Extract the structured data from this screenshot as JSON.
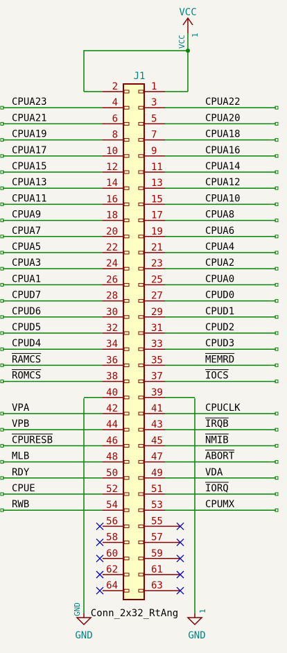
{
  "power": {
    "vcc_label": "VCC",
    "vcc_pin_name": "VCC",
    "vcc_pin_num": "1",
    "gnd_left_label": "GND",
    "gnd_right_label": "GND",
    "gnd_left_pin_name": "GND",
    "gnd_right_pin_num": "1"
  },
  "component": {
    "reference": "J1",
    "value": "Conn_2x32_RtAng"
  },
  "colors": {
    "background": "#f5f4ef",
    "body_fill": "#ffffc4",
    "body_stroke": "#840000",
    "wire": "#008400",
    "net_label": "#000000",
    "pin_number": "#a90000",
    "power": "#840000",
    "power_text": "#008484",
    "no_connect": "#0000c8"
  },
  "pins": {
    "left": [
      {
        "num": "2",
        "label": ""
      },
      {
        "num": "4",
        "label": "CPUA23"
      },
      {
        "num": "6",
        "label": "CPUA21"
      },
      {
        "num": "8",
        "label": "CPUA19"
      },
      {
        "num": "10",
        "label": "CPUA17"
      },
      {
        "num": "12",
        "label": "CPUA15"
      },
      {
        "num": "14",
        "label": "CPUA13"
      },
      {
        "num": "16",
        "label": "CPUA11"
      },
      {
        "num": "18",
        "label": "CPUA9"
      },
      {
        "num": "20",
        "label": "CPUA7"
      },
      {
        "num": "22",
        "label": "CPUA5"
      },
      {
        "num": "24",
        "label": "CPUA3"
      },
      {
        "num": "26",
        "label": "CPUA1"
      },
      {
        "num": "28",
        "label": "CPUD7"
      },
      {
        "num": "30",
        "label": "CPUD6"
      },
      {
        "num": "32",
        "label": "CPUD5"
      },
      {
        "num": "34",
        "label": "CPUD4"
      },
      {
        "num": "36",
        "label": "RAMCS",
        "overbar": true
      },
      {
        "num": "38",
        "label": "ROMCS",
        "overbar": true
      },
      {
        "num": "40",
        "label": ""
      },
      {
        "num": "42",
        "label": "VPA"
      },
      {
        "num": "44",
        "label": "VPB"
      },
      {
        "num": "46",
        "label": "CPURESB",
        "overbar": true
      },
      {
        "num": "48",
        "label": "MLB"
      },
      {
        "num": "50",
        "label": "RDY"
      },
      {
        "num": "52",
        "label": "CPUE"
      },
      {
        "num": "54",
        "label": "RWB"
      },
      {
        "num": "56",
        "label": "",
        "nc": true
      },
      {
        "num": "58",
        "label": "",
        "nc": true
      },
      {
        "num": "60",
        "label": "",
        "nc": true
      },
      {
        "num": "62",
        "label": "",
        "nc": true
      },
      {
        "num": "64",
        "label": "",
        "nc": true
      }
    ],
    "right": [
      {
        "num": "1",
        "label": ""
      },
      {
        "num": "3",
        "label": "CPUA22"
      },
      {
        "num": "5",
        "label": "CPUA20"
      },
      {
        "num": "7",
        "label": "CPUA18"
      },
      {
        "num": "9",
        "label": "CPUA16"
      },
      {
        "num": "11",
        "label": "CPUA14"
      },
      {
        "num": "13",
        "label": "CPUA12"
      },
      {
        "num": "15",
        "label": "CPUA10"
      },
      {
        "num": "17",
        "label": "CPUA8"
      },
      {
        "num": "19",
        "label": "CPUA6"
      },
      {
        "num": "21",
        "label": "CPUA4"
      },
      {
        "num": "23",
        "label": "CPUA2"
      },
      {
        "num": "25",
        "label": "CPUA0"
      },
      {
        "num": "27",
        "label": "CPUD0"
      },
      {
        "num": "29",
        "label": "CPUD1"
      },
      {
        "num": "31",
        "label": "CPUD2"
      },
      {
        "num": "33",
        "label": "CPUD3"
      },
      {
        "num": "35",
        "label": "MEMRD",
        "overbar": true
      },
      {
        "num": "37",
        "label": "IOCS",
        "overbar": true
      },
      {
        "num": "39",
        "label": ""
      },
      {
        "num": "41",
        "label": "CPUCLK"
      },
      {
        "num": "43",
        "label": "IRQB",
        "overbar": true
      },
      {
        "num": "45",
        "label": "NMIB",
        "overbar": true
      },
      {
        "num": "47",
        "label": "ABORT",
        "overbar": true
      },
      {
        "num": "49",
        "label": "VDA"
      },
      {
        "num": "51",
        "label": "IORQ",
        "overbar": true
      },
      {
        "num": "53",
        "label": "CPUMX"
      },
      {
        "num": "55",
        "label": "",
        "nc": true
      },
      {
        "num": "57",
        "label": "",
        "nc": true
      },
      {
        "num": "59",
        "label": "",
        "nc": true
      },
      {
        "num": "61",
        "label": "",
        "nc": true
      },
      {
        "num": "63",
        "label": "",
        "nc": true
      }
    ]
  }
}
